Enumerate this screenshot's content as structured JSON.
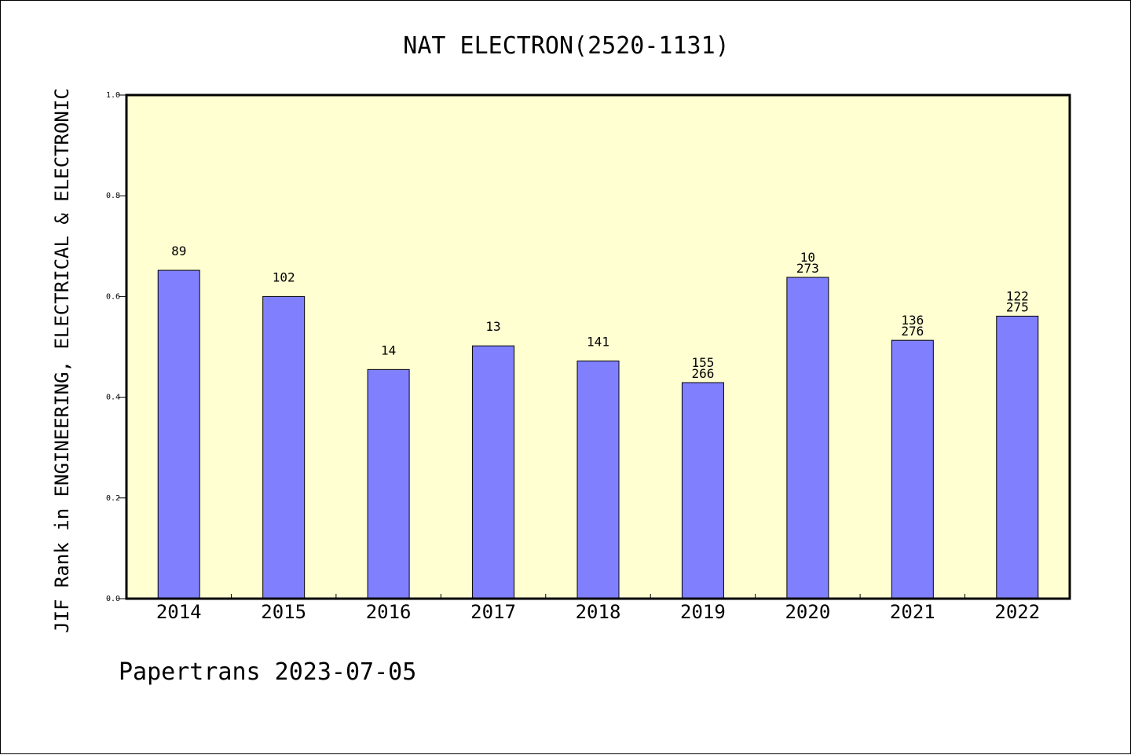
{
  "chart_data": {
    "type": "bar",
    "title": "NAT ELECTRON(2520-1131)",
    "xlabel": "",
    "ylabel": "JIF Rank in ENGINEERING, ELECTRICAL & ELECTRONIC",
    "ylim": [
      0,
      1.0
    ],
    "yticks": [
      "0.0",
      "0.2",
      "0.4",
      "0.6",
      "0.8",
      "1.0"
    ],
    "categories": [
      "2014",
      "2015",
      "2016",
      "2017",
      "2018",
      "2019",
      "2020",
      "2021",
      "2022"
    ],
    "values": [
      0.652,
      0.6,
      0.455,
      0.502,
      0.472,
      0.429,
      0.638,
      0.513,
      0.561
    ],
    "bar_labels": [
      [
        "89"
      ],
      [
        "102"
      ],
      [
        "14"
      ],
      [
        "13"
      ],
      [
        "141"
      ],
      [
        "155",
        "266"
      ],
      [
        "10",
        "273"
      ],
      [
        "136",
        "276"
      ],
      [
        "122",
        "275"
      ]
    ],
    "grid": false,
    "bar_color": "#8080ff",
    "plot_background": "#ffffd2"
  },
  "footer": {
    "text": "Papertrans 2023-07-05"
  }
}
